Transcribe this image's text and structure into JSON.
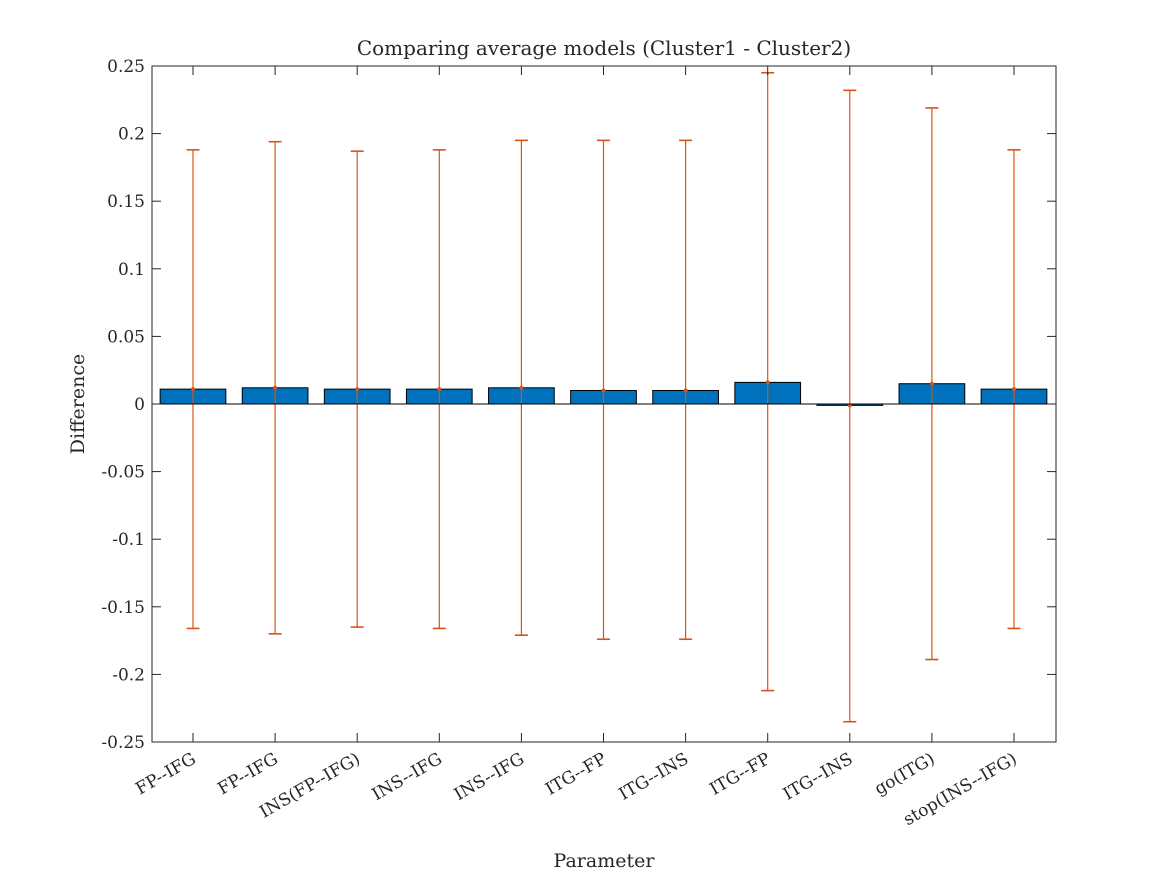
{
  "chart_data": {
    "type": "bar",
    "title": "Comparing average models (Cluster1 - Cluster2)",
    "xlabel": "Parameter",
    "ylabel": "Difference",
    "ylim": [
      -0.25,
      0.25
    ],
    "yticks": [
      -0.25,
      -0.2,
      -0.15,
      -0.1,
      -0.05,
      0,
      0.05,
      0.1,
      0.15,
      0.2,
      0.25
    ],
    "ytick_labels": [
      "-0.25",
      "-0.2",
      "-0.15",
      "-0.1",
      "-0.05",
      "0",
      "0.05",
      "0.1",
      "0.15",
      "0.2",
      "0.25"
    ],
    "categories": [
      "FP--IFG",
      "FP--IFG",
      "INS(FP--IFG)",
      "INS--IFG",
      "INS--IFG",
      "ITG--FP",
      "ITG--INS",
      "ITG--FP",
      "ITG--INS",
      "go(ITG)",
      "stop(INS--IFG)"
    ],
    "values": [
      0.011,
      0.012,
      0.011,
      0.011,
      0.012,
      0.01,
      0.01,
      0.016,
      -0.001,
      0.015,
      0.011
    ],
    "error_upper": [
      0.188,
      0.194,
      0.187,
      0.188,
      0.195,
      0.195,
      0.195,
      0.245,
      0.232,
      0.219,
      0.188
    ],
    "error_lower": [
      -0.166,
      -0.17,
      -0.165,
      -0.166,
      -0.171,
      -0.174,
      -0.174,
      -0.212,
      -0.235,
      -0.189,
      -0.166
    ],
    "grid": false,
    "colors": {
      "bar": "#0072BD",
      "error": "#D95319",
      "axis": "#262626"
    }
  }
}
